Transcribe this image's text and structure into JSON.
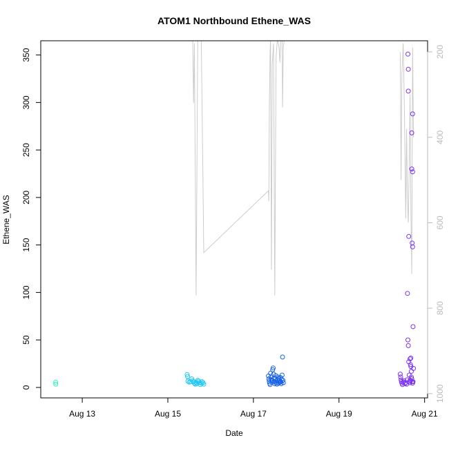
{
  "chart_data": {
    "type": "scatter",
    "title": "ATOM1 Northbound Ethene_WAS",
    "xlabel": "Date",
    "ylabel": "Ethene_WAS",
    "x_ticks": [
      "Aug 13",
      "Aug 15",
      "Aug 17",
      "Aug 19",
      "Aug 21"
    ],
    "x_tick_days": [
      13,
      15,
      17,
      19,
      21
    ],
    "xlim": [
      12.03,
      21.07
    ],
    "ylim": [
      -11,
      365
    ],
    "y_ticks": [
      0,
      50,
      100,
      150,
      200,
      250,
      300,
      350
    ],
    "secondary_y": {
      "color": "#bbbbbb",
      "ticks": [
        200,
        400,
        600,
        800,
        1000
      ],
      "lim_top_to_bottom": [
        174,
        1010
      ],
      "reversed": true
    },
    "grid": false,
    "series": [
      {
        "color": "#2ef0c0",
        "points": [
          [
            12.38,
            3.5
          ],
          [
            12.38,
            5.5
          ]
        ]
      },
      {
        "color": "#1fc7f5",
        "points": [
          [
            15.45,
            13.5
          ],
          [
            15.46,
            11.5
          ],
          [
            15.47,
            6.5
          ],
          [
            15.5,
            5.5
          ],
          [
            15.53,
            6.0
          ],
          [
            15.56,
            9.0
          ],
          [
            15.58,
            7.0
          ],
          [
            15.6,
            6.0
          ],
          [
            15.62,
            4.5
          ],
          [
            15.64,
            3.5
          ],
          [
            15.66,
            5.5
          ],
          [
            15.68,
            4.0
          ],
          [
            15.7,
            7.5
          ],
          [
            15.72,
            6.5
          ],
          [
            15.74,
            5.0
          ],
          [
            15.76,
            3.0
          ],
          [
            15.78,
            4.5
          ],
          [
            15.8,
            6.0
          ],
          [
            15.82,
            5.0
          ],
          [
            15.84,
            3.5
          ]
        ]
      },
      {
        "color": "#1560e8",
        "points": [
          [
            17.35,
            12.0
          ],
          [
            17.36,
            9.0
          ],
          [
            17.37,
            6.5
          ],
          [
            17.38,
            4.5
          ],
          [
            17.39,
            3.0
          ],
          [
            17.4,
            15.0
          ],
          [
            17.41,
            11.0
          ],
          [
            17.42,
            8.0
          ],
          [
            17.43,
            5.5
          ],
          [
            17.44,
            7.5
          ],
          [
            17.45,
            18.5
          ],
          [
            17.46,
            20.5
          ],
          [
            17.47,
            14.0
          ],
          [
            17.48,
            10.0
          ],
          [
            17.49,
            6.0
          ],
          [
            17.5,
            4.0
          ],
          [
            17.51,
            9.5
          ],
          [
            17.52,
            12.5
          ],
          [
            17.53,
            7.0
          ],
          [
            17.54,
            5.0
          ],
          [
            17.55,
            3.5
          ],
          [
            17.56,
            8.0
          ],
          [
            17.57,
            11.0
          ],
          [
            17.58,
            6.5
          ],
          [
            17.59,
            4.5
          ],
          [
            17.6,
            9.0
          ],
          [
            17.61,
            7.0
          ],
          [
            17.62,
            5.5
          ],
          [
            17.63,
            10.5
          ],
          [
            17.64,
            6.0
          ],
          [
            17.65,
            4.0
          ],
          [
            17.66,
            8.5
          ],
          [
            17.67,
            13.0
          ],
          [
            17.68,
            32.0
          ],
          [
            17.69,
            7.5
          ],
          [
            17.7,
            5.0
          ]
        ]
      },
      {
        "color": "#7a30f5",
        "points": [
          [
            20.43,
            14.0
          ],
          [
            20.44,
            11.0
          ],
          [
            20.45,
            8.0
          ],
          [
            20.46,
            6.0
          ],
          [
            20.47,
            4.5
          ],
          [
            20.48,
            3.0
          ],
          [
            20.5,
            5.5
          ],
          [
            20.52,
            7.0
          ],
          [
            20.54,
            4.0
          ],
          [
            20.56,
            5.0
          ],
          [
            20.58,
            3.5
          ],
          [
            20.59,
            8.0
          ],
          [
            20.6,
            99.0
          ],
          [
            20.61,
            50.0
          ],
          [
            20.62,
            44.0
          ],
          [
            20.63,
            27.0
          ],
          [
            20.64,
            13.0
          ],
          [
            20.65,
            6.5
          ],
          [
            20.61,
            351.0
          ],
          [
            20.62,
            335.0
          ],
          [
            20.62,
            312.0
          ],
          [
            20.63,
            159.0
          ],
          [
            20.66,
            30.0
          ],
          [
            20.67,
            24.0
          ],
          [
            20.68,
            22.0
          ],
          [
            20.69,
            17.0
          ],
          [
            20.7,
            9.0
          ],
          [
            20.71,
            6.0
          ],
          [
            20.72,
            4.5
          ],
          [
            20.7,
            268.0
          ],
          [
            20.72,
            288.0
          ],
          [
            20.7,
            230.0
          ],
          [
            20.72,
            227.0
          ],
          [
            20.71,
            152.0
          ],
          [
            20.72,
            148.0
          ],
          [
            20.73,
            64.0
          ],
          [
            20.74,
            20.0
          ],
          [
            20.68,
            31.0
          ],
          [
            20.69,
            11.0
          ],
          [
            20.73,
            6.0
          ],
          [
            20.66,
            5.0
          ],
          [
            20.67,
            7.5
          ]
        ]
      }
    ],
    "secondary_line": {
      "color": "#cccccc",
      "segments": [
        [
          [
            15.58,
            160
          ],
          [
            15.6,
            320
          ],
          [
            15.62,
            180
          ],
          [
            15.66,
            770
          ],
          [
            15.7,
            160
          ],
          [
            15.78,
            160
          ],
          [
            15.82,
            500
          ],
          [
            15.84,
            670
          ],
          [
            17.35,
            525
          ],
          [
            17.36,
            550
          ],
          [
            17.37,
            350
          ],
          [
            17.39,
            200
          ],
          [
            17.4,
            170
          ],
          [
            17.42,
            710
          ],
          [
            17.44,
            230
          ],
          [
            17.47,
            180
          ],
          [
            17.5,
            770
          ],
          [
            17.53,
            210
          ],
          [
            17.56,
            170
          ],
          [
            17.6,
            190
          ],
          [
            17.62,
            225
          ],
          [
            17.64,
            170
          ],
          [
            17.67,
            170
          ],
          [
            17.68,
            330
          ],
          [
            17.7,
            190
          ],
          [
            17.72,
            170
          ],
          [
            17.74,
            170
          ]
        ],
        [
          [
            20.43,
            200
          ],
          [
            20.45,
            500
          ],
          [
            20.47,
            250
          ],
          [
            20.5,
            180
          ],
          [
            20.53,
            340
          ],
          [
            20.56,
            590
          ],
          [
            20.58,
            380
          ],
          [
            20.6,
            550
          ],
          [
            20.62,
            600
          ],
          [
            20.64,
            460
          ],
          [
            20.66,
            300
          ],
          [
            20.68,
            570
          ],
          [
            20.7,
            720
          ],
          [
            20.72,
            190
          ],
          [
            20.74,
            400
          ]
        ]
      ]
    }
  }
}
